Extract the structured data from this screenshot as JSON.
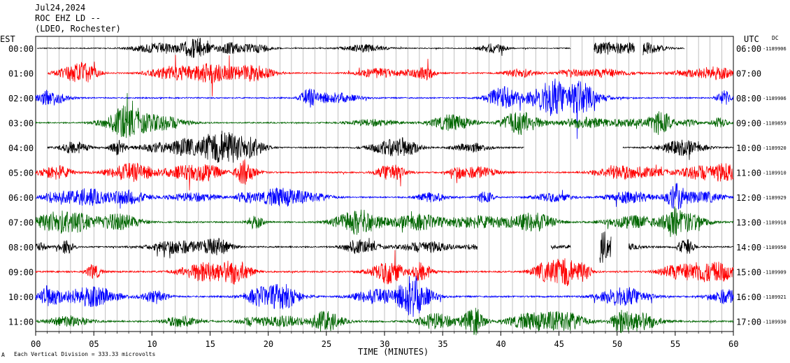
{
  "header": {
    "date": "Jul24,2024",
    "station": "ROC EHZ LD --",
    "network": "(LDEO, Rochester)"
  },
  "left_axis_label": "EST",
  "right_axis_label": "UTC",
  "dc_label": "DC",
  "footer": {
    "scale_note": "Each Vertical Division =  333.33 microvolts",
    "corner_mark": "A"
  },
  "chart_data": {
    "type": "line",
    "title": "",
    "xlabel": "TIME (MINUTES)",
    "ylabel": "",
    "xlim": [
      0,
      60
    ],
    "x_ticks": [
      "00",
      "05",
      "10",
      "15",
      "20",
      "25",
      "30",
      "35",
      "40",
      "45",
      "50",
      "55",
      "60"
    ],
    "grid": "vertical lines every 1 minute",
    "series": [
      {
        "est": "00:00",
        "utc": "06:00",
        "dc": "-1189906",
        "color": "#000000",
        "start": 0.1,
        "gaps": [
          [
            46,
            48
          ],
          [
            51.5,
            52.2
          ],
          [
            55.8,
            60
          ]
        ],
        "amp": 0.6
      },
      {
        "est": "01:00",
        "utc": "07:00",
        "dc": "",
        "color": "#ff0000",
        "start": 1,
        "gaps": [],
        "amp": 0.8
      },
      {
        "est": "02:00",
        "utc": "08:00",
        "dc": "-1189906",
        "color": "#0000ff",
        "start": 0,
        "gaps": [],
        "amp": 0.8
      },
      {
        "est": "03:00",
        "utc": "09:00",
        "dc": "-1189859",
        "color": "#006600",
        "start": 0,
        "gaps": [],
        "amp": 0.8
      },
      {
        "est": "04:00",
        "utc": "10:00",
        "dc": "-1189920",
        "color": "#000000",
        "start": 1,
        "gaps": [
          [
            42,
            50.5
          ]
        ],
        "amp": 0.8
      },
      {
        "est": "05:00",
        "utc": "11:00",
        "dc": "-1189910",
        "color": "#ff0000",
        "start": 0,
        "gaps": [],
        "amp": 0.9
      },
      {
        "est": "06:00",
        "utc": "12:00",
        "dc": "-1189929",
        "color": "#0000ff",
        "start": 0,
        "gaps": [],
        "amp": 0.9
      },
      {
        "est": "07:00",
        "utc": "13:00",
        "dc": "-1189918",
        "color": "#006600",
        "start": 0,
        "gaps": [],
        "amp": 1.0
      },
      {
        "est": "08:00",
        "utc": "14:00",
        "dc": "-1189950",
        "color": "#000000",
        "start": 0,
        "gaps": [
          [
            38,
            44.3
          ],
          [
            46,
            48.5
          ],
          [
            49.5,
            51
          ]
        ],
        "amp": 0.9
      },
      {
        "est": "09:00",
        "utc": "15:00",
        "dc": "-1189909",
        "color": "#ff0000",
        "start": 0,
        "gaps": [],
        "amp": 1.0
      },
      {
        "est": "10:00",
        "utc": "16:00",
        "dc": "-1189921",
        "color": "#0000ff",
        "start": 0,
        "gaps": [],
        "amp": 1.0
      },
      {
        "est": "11:00",
        "utc": "17:00",
        "dc": "-1189930",
        "color": "#006600",
        "start": 0,
        "gaps": [],
        "amp": 1.1
      }
    ]
  }
}
